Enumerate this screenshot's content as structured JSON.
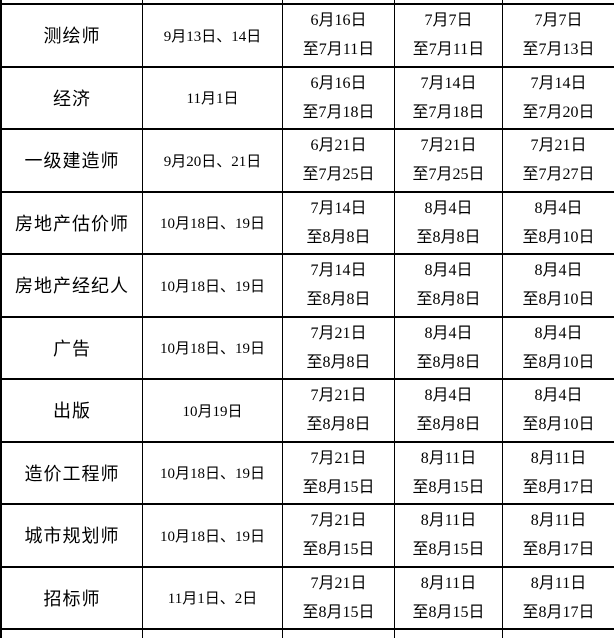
{
  "colors": {
    "background": "#ffffff",
    "border": "#000000",
    "text": "#000000"
  },
  "table": {
    "rows": [
      {
        "name": "测绘师",
        "exam_date": "9月13日、14日",
        "periods": [
          {
            "start": "6月16日",
            "end": "至7月11日"
          },
          {
            "start": "7月7日",
            "end": "至7月11日"
          },
          {
            "start": "7月7日",
            "end": "至7月13日"
          }
        ]
      },
      {
        "name": "经济",
        "exam_date": "11月1日",
        "periods": [
          {
            "start": "6月16日",
            "end": "至7月18日"
          },
          {
            "start": "7月14日",
            "end": "至7月18日"
          },
          {
            "start": "7月14日",
            "end": "至7月20日"
          }
        ]
      },
      {
        "name": "一级建造师",
        "exam_date": "9月20日、21日",
        "periods": [
          {
            "start": "6月21日",
            "end": "至7月25日"
          },
          {
            "start": "7月21日",
            "end": "至7月25日"
          },
          {
            "start": "7月21日",
            "end": "至7月27日"
          }
        ]
      },
      {
        "name": "房地产估价师",
        "exam_date": "10月18日、19日",
        "periods": [
          {
            "start": "7月14日",
            "end": "至8月8日"
          },
          {
            "start": "8月4日",
            "end": "至8月8日"
          },
          {
            "start": "8月4日",
            "end": "至8月10日"
          }
        ]
      },
      {
        "name": "房地产经纪人",
        "exam_date": "10月18日、19日",
        "periods": [
          {
            "start": "7月14日",
            "end": "至8月8日"
          },
          {
            "start": "8月4日",
            "end": "至8月8日"
          },
          {
            "start": "8月4日",
            "end": "至8月10日"
          }
        ]
      },
      {
        "name": "广告",
        "exam_date": "10月18日、19日",
        "periods": [
          {
            "start": "7月21日",
            "end": "至8月8日"
          },
          {
            "start": "8月4日",
            "end": "至8月8日"
          },
          {
            "start": "8月4日",
            "end": "至8月10日"
          }
        ]
      },
      {
        "name": "出版",
        "exam_date": "10月19日",
        "periods": [
          {
            "start": "7月21日",
            "end": "至8月8日"
          },
          {
            "start": "8月4日",
            "end": "至8月8日"
          },
          {
            "start": "8月4日",
            "end": "至8月10日"
          }
        ]
      },
      {
        "name": "造价工程师",
        "exam_date": "10月18日、19日",
        "periods": [
          {
            "start": "7月21日",
            "end": "至8月15日"
          },
          {
            "start": "8月11日",
            "end": "至8月15日"
          },
          {
            "start": "8月11日",
            "end": "至8月17日"
          }
        ]
      },
      {
        "name": "城市规划师",
        "exam_date": "10月18日、19日",
        "periods": [
          {
            "start": "7月21日",
            "end": "至8月15日"
          },
          {
            "start": "8月11日",
            "end": "至8月15日"
          },
          {
            "start": "8月11日",
            "end": "至8月17日"
          }
        ]
      },
      {
        "name": "招标师",
        "exam_date": "11月1日、2日",
        "periods": [
          {
            "start": "7月21日",
            "end": "至8月15日"
          },
          {
            "start": "8月11日",
            "end": "至8月15日"
          },
          {
            "start": "8月11日",
            "end": "至8月17日"
          }
        ]
      }
    ]
  }
}
